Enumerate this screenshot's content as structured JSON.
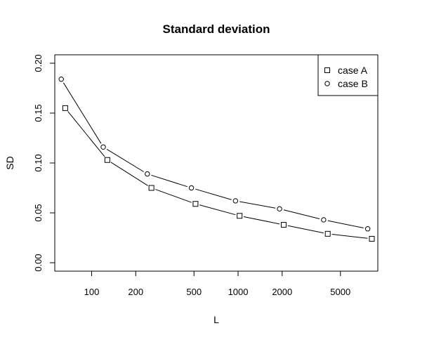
{
  "chart_data": {
    "type": "line",
    "title": "Standard deviation",
    "xlabel": "L",
    "ylabel": "SD",
    "x_scale": "log",
    "xlim": [
      56,
      9000
    ],
    "ylim": [
      0.0,
      0.2
    ],
    "x_ticks": [
      100,
      200,
      500,
      1000,
      2000,
      5000
    ],
    "x_tick_labels": [
      "100",
      "200",
      "500",
      "1000",
      "2000",
      "5000"
    ],
    "y_ticks": [
      0.0,
      0.05,
      0.1,
      0.15,
      0.2
    ],
    "y_tick_labels": [
      "0.00",
      "0.05",
      "0.10",
      "0.15",
      "0.20"
    ],
    "grid": false,
    "legend_position": "top-right",
    "series": [
      {
        "name": "case A",
        "marker": "square",
        "x": [
          66,
          128,
          256,
          512,
          1024,
          2048,
          4096,
          8192
        ],
        "y": [
          0.155,
          0.103,
          0.075,
          0.059,
          0.047,
          0.038,
          0.029,
          0.024
        ]
      },
      {
        "name": "case B",
        "marker": "circle",
        "x": [
          62,
          120,
          240,
          480,
          960,
          1920,
          3840,
          7680
        ],
        "y": [
          0.184,
          0.116,
          0.089,
          0.075,
          0.062,
          0.054,
          0.043,
          0.034
        ]
      }
    ]
  }
}
